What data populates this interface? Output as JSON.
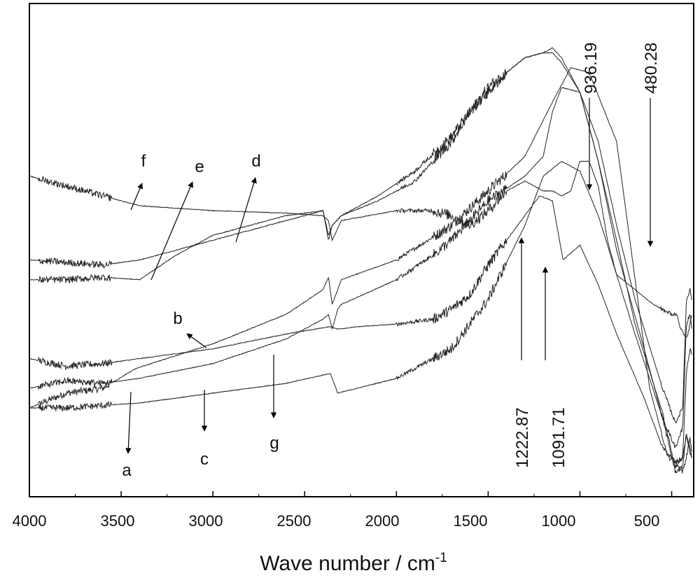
{
  "chart_data": {
    "type": "line",
    "title": "",
    "xlabel": "Wave number / cm",
    "xlabel_superscript": "-1",
    "ylabel": "",
    "x_reversed": true,
    "xlim": [
      4000,
      380
    ],
    "ylim": [
      0,
      100
    ],
    "x_ticks": [
      4000,
      3500,
      3000,
      2500,
      2000,
      1500,
      1000,
      500
    ],
    "x_tick_labels": [
      "4000",
      "3500",
      "3000",
      "2500",
      "2000",
      "1500",
      "1000",
      "500"
    ],
    "series": [
      {
        "name": "a",
        "x": [
          4000,
          3800,
          3600,
          3420,
          3000,
          2600,
          2400,
          2370,
          2350,
          2300,
          2000,
          1700,
          1500,
          1300,
          1150,
          1050,
          950,
          800,
          620,
          520,
          480,
          440,
          420,
          400,
          390
        ],
        "y": [
          18,
          21,
          22,
          26,
          31,
          37,
          42,
          44.5,
          39,
          44,
          48,
          55,
          62,
          69,
          80,
          87,
          86,
          72,
          22,
          8,
          7,
          5,
          8,
          12,
          9
        ]
      },
      {
        "name": "b",
        "x": [
          4000,
          3800,
          3600,
          3400,
          3000,
          2600,
          2360,
          2320,
          2200,
          2000,
          1800,
          1700,
          1600,
          1550,
          1500,
          1400,
          1300,
          1220,
          1150,
          1092,
          1000,
          900,
          800,
          650,
          550,
          480,
          440,
          420,
          400,
          390
        ],
        "y": [
          28,
          26.5,
          27,
          28,
          30,
          33,
          34.5,
          34,
          34.5,
          35,
          36,
          38,
          41,
          44,
          47,
          52,
          57,
          61,
          60,
          48,
          51,
          43,
          33,
          20,
          10,
          7,
          8,
          25,
          30,
          29
        ]
      },
      {
        "name": "c",
        "x": [
          4000,
          3800,
          3600,
          3400,
          3000,
          2600,
          2360,
          2320,
          2000,
          1700,
          1500,
          1300,
          1200,
          1100,
          1000,
          900,
          800,
          700,
          550,
          480,
          440,
          420,
          400,
          390
        ],
        "y": [
          18,
          18,
          18.5,
          19,
          21,
          23,
          25,
          21,
          24,
          30,
          40,
          55,
          65,
          68,
          66,
          57,
          45,
          33,
          16,
          5,
          6,
          13,
          9,
          8
        ]
      },
      {
        "name": "d",
        "x": [
          4000,
          3800,
          3600,
          3400,
          3000,
          2600,
          2400,
          2370,
          2350,
          2300,
          2100,
          1900,
          1700,
          1600,
          1500,
          1400,
          1300,
          1200,
          1150,
          1100,
          1000,
          900,
          800,
          700,
          550,
          480,
          440,
          420,
          400,
          390
        ],
        "y": [
          48,
          47.5,
          47,
          48,
          52,
          56,
          58,
          52,
          55,
          57,
          60,
          64,
          72,
          78,
          82,
          86,
          89,
          90,
          90,
          88,
          82,
          72,
          55,
          40,
          22,
          15,
          18,
          40,
          42,
          40
        ]
      },
      {
        "name": "e",
        "x": [
          4000,
          3800,
          3600,
          3400,
          3200,
          3000,
          2600,
          2400,
          2370,
          2350,
          2300,
          2100,
          1900,
          1700,
          1600,
          1500,
          1400,
          1300,
          1200,
          1150,
          1100,
          1000,
          900,
          800,
          650,
          550,
          480,
          440,
          420,
          400,
          390
        ],
        "y": [
          44,
          44,
          44.5,
          44,
          49,
          53,
          57,
          58,
          53,
          55,
          57,
          61,
          66,
          73,
          78,
          83,
          86,
          89,
          90,
          91,
          89,
          82,
          68,
          50,
          30,
          16,
          10,
          14,
          35,
          37,
          34
        ]
      },
      {
        "name": "f",
        "x": [
          4000,
          3800,
          3600,
          3400,
          3000,
          2600,
          2400,
          2370,
          2350,
          2300,
          2000,
          1800,
          1700,
          1650,
          1600,
          1500,
          1400,
          1300,
          1200,
          1150,
          1100,
          1050,
          1000,
          950,
          900,
          850,
          800,
          700,
          600,
          550,
          500,
          470,
          450,
          420,
          400,
          390
        ],
        "y": [
          65,
          63,
          61,
          59,
          58,
          57.5,
          57,
          56,
          52,
          56,
          58,
          58,
          57,
          56,
          55,
          58,
          62,
          64,
          62,
          62,
          61,
          62,
          68,
          68,
          63,
          52,
          45,
          42,
          39,
          38,
          37,
          37,
          34,
          32,
          35,
          37
        ]
      },
      {
        "name": "g",
        "x": [
          4000,
          3800,
          3600,
          3400,
          3000,
          2600,
          2400,
          2370,
          2350,
          2320,
          2300,
          2000,
          1800,
          1700,
          1500,
          1300,
          1200,
          1150,
          1100,
          1000,
          900,
          800,
          700,
          550,
          480,
          440,
          420,
          400,
          390
        ],
        "y": [
          22,
          23.5,
          23,
          24,
          27,
          32,
          36,
          37,
          34,
          38,
          39,
          44,
          49,
          52,
          60,
          65,
          69,
          78,
          83,
          82,
          68,
          52,
          35,
          17,
          6,
          8,
          12,
          10,
          8
        ]
      }
    ],
    "curve_labels": [
      "a",
      "b",
      "c",
      "d",
      "e",
      "f",
      "g"
    ],
    "peak_labels": [
      "936.19",
      "480.28",
      "1222.87",
      "1091.71"
    ]
  }
}
